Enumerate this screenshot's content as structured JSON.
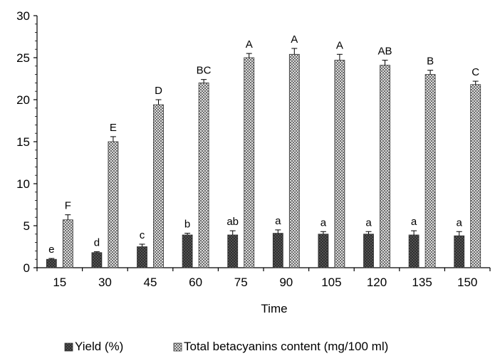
{
  "chart_data": {
    "type": "bar",
    "xlabel": "Time",
    "ylabel": "",
    "ylim": [
      0,
      30
    ],
    "yticks": [
      0,
      5,
      10,
      15,
      20,
      25,
      30
    ],
    "categories": [
      "15",
      "30",
      "45",
      "60",
      "75",
      "90",
      "105",
      "120",
      "135",
      "150"
    ],
    "legend_position": "bottom",
    "series": [
      {
        "name": "Yield (%)",
        "pattern": "dark-dotted",
        "color": "#3a3a3a",
        "values": [
          1.0,
          1.8,
          2.5,
          3.9,
          3.9,
          4.1,
          4.0,
          4.0,
          3.9,
          3.8
        ],
        "errors": [
          0.1,
          0.1,
          0.3,
          0.2,
          0.5,
          0.4,
          0.3,
          0.3,
          0.5,
          0.5
        ],
        "significance": [
          "e",
          "d",
          "c",
          "b",
          "ab",
          "a",
          "a",
          "a",
          "a",
          "a"
        ]
      },
      {
        "name": "Total betacyanins content (mg/100 ml)",
        "pattern": "light-crosshatch",
        "color": "#9a9a9a",
        "values": [
          5.7,
          15.0,
          19.4,
          22.0,
          25.0,
          25.4,
          24.7,
          24.1,
          23.0,
          21.8
        ],
        "errors": [
          0.6,
          0.6,
          0.6,
          0.4,
          0.5,
          0.7,
          0.7,
          0.6,
          0.5,
          0.4
        ],
        "significance": [
          "F",
          "E",
          "D",
          "BC",
          "A",
          "A",
          "A",
          "AB",
          "B",
          "C"
        ]
      }
    ]
  }
}
